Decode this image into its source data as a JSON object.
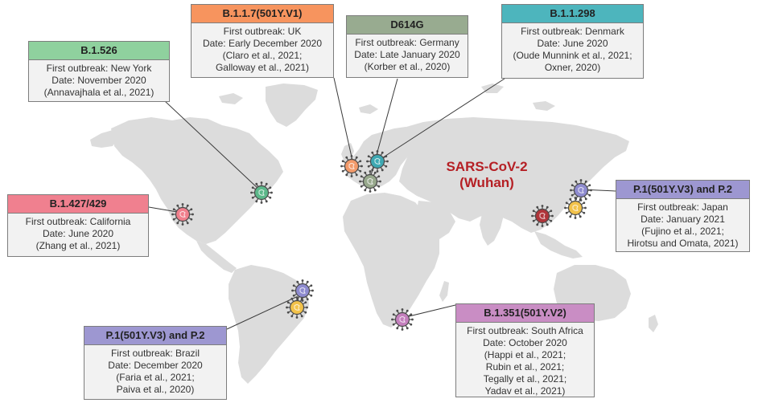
{
  "origin": {
    "line1": "SARS-CoV-2",
    "line2": "(Wuhan)",
    "color": "#b0353a"
  },
  "variants": [
    {
      "id": "b1526",
      "name": "B.1.526",
      "color": "#8fd19e",
      "lines": [
        "First outbreak: New York",
        "Date: November 2020",
        "(Annavajhala et al., 2021)"
      ]
    },
    {
      "id": "b117",
      "name": "B.1.1.7(501Y.V1)",
      "color": "#f7945e",
      "lines": [
        "First outbreak: UK",
        "Date: Early December 2020",
        "(Claro et al., 2021;",
        "Galloway et al., 2021)"
      ]
    },
    {
      "id": "d614g",
      "name": "D614G",
      "color": "#98ab90",
      "lines": [
        "First outbreak: Germany",
        "Date: Late January 2020",
        "(Korber et al., 2020)"
      ]
    },
    {
      "id": "b11298",
      "name": "B.1.1.298",
      "color": "#4db5bd",
      "lines": [
        "First outbreak: Denmark",
        "Date: June 2020",
        "(Oude Munnink et al., 2021;",
        "Oxner, 2020)"
      ]
    },
    {
      "id": "b1427",
      "name": "B.1.427/429",
      "color": "#f0808f",
      "lines": [
        "First outbreak: California",
        "Date: June 2020",
        "(Zhang et al., 2021)"
      ]
    },
    {
      "id": "p1japan",
      "name": "P.1(501Y.V3) and P.2",
      "color": "#9d97d1",
      "lines": [
        "First outbreak: Japan",
        "Date: January 2021",
        "(Fujino et al., 2021;",
        "Hirotsu and Omata, 2021)"
      ]
    },
    {
      "id": "p1brazil",
      "name": "P.1(501Y.V3) and P.2",
      "color": "#9d97d1",
      "lines": [
        "First outbreak: Brazil",
        "Date: December 2020",
        "(Faria et al., 2021;",
        "Paiva et al., 2020)"
      ]
    },
    {
      "id": "b1351",
      "name": "B.1.351(501Y.V2)",
      "color": "#c98dc4",
      "lines": [
        "First outbreak: South Africa",
        "Date: October 2020",
        "(Happi et al., 2021;",
        "Rubin et al., 2021;",
        "Tegally et al., 2021;",
        "Yadav et al., 2021)"
      ]
    }
  ],
  "virus_colors": {
    "newyork": "#5cb88a",
    "uk": "#f29a6a",
    "germany": "#97a88c",
    "denmark": "#3ea8b2",
    "california": "#f07f8c",
    "japan_p1": "#8e8bcf",
    "japan_p2": "#f2c24a",
    "brazil_p1": "#8e8bcf",
    "brazil_p2": "#f2c24a",
    "southafrica": "#c47fbd"
  }
}
